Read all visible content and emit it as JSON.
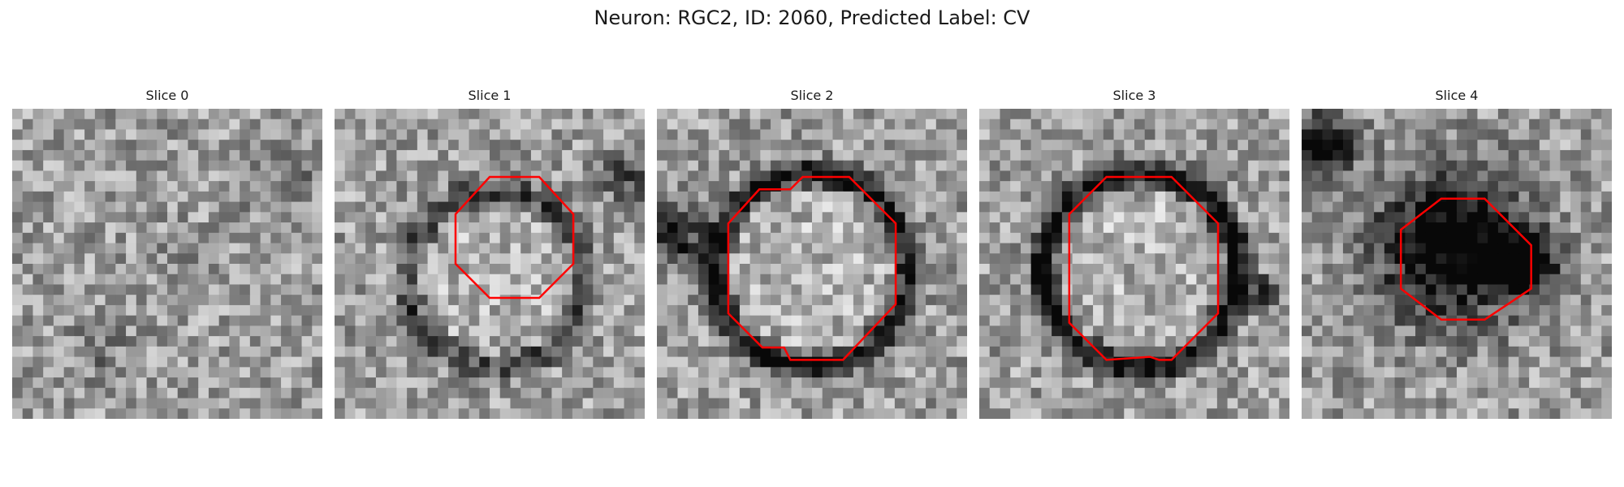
{
  "title": "Neuron: RGC2, ID: 2060, Predicted Label: CV",
  "overlay_color": "#ff0000",
  "panels": [
    {
      "label": "Slice 0",
      "has_contour": false,
      "dark_blob_intensity": 0.15
    },
    {
      "label": "Slice 1",
      "has_contour": true,
      "dark_blob_intensity": 0.35
    },
    {
      "label": "Slice 2",
      "has_contour": true,
      "dark_blob_intensity": 0.55
    },
    {
      "label": "Slice 3",
      "has_contour": true,
      "dark_blob_intensity": 0.6
    },
    {
      "label": "Slice 4",
      "has_contour": true,
      "dark_blob_intensity": 0.75
    }
  ]
}
